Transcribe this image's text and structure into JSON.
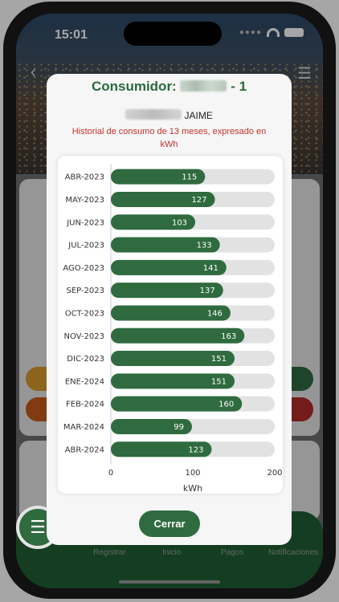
{
  "status_bar": {
    "time": "15:01"
  },
  "modal": {
    "title_prefix": "Consumidor:",
    "title_suffix": "- 1",
    "name_suffix": "JAIME",
    "note": "Historial de consumo de 13 meses, expresado en kWh",
    "close_label": "Cerrar"
  },
  "bottom_nav": {
    "items": [
      "Registrar",
      "Inicio",
      "Pagos",
      "Notificaciones"
    ]
  },
  "colors": {
    "bar": "#2f6b3f",
    "track": "#e2e2e2",
    "note": "#c4322b",
    "title": "#2a6a3c"
  },
  "chart_data": {
    "type": "bar",
    "orientation": "horizontal",
    "categories": [
      "ABR-2023",
      "MAY-2023",
      "JUN-2023",
      "JUL-2023",
      "AGO-2023",
      "SEP-2023",
      "OCT-2023",
      "NOV-2023",
      "DIC-2023",
      "ENE-2024",
      "FEB-2024",
      "MAR-2024",
      "ABR-2024"
    ],
    "values": [
      115,
      127,
      103,
      133,
      141,
      137,
      146,
      163,
      151,
      151,
      160,
      99,
      123
    ],
    "xlabel": "kWh",
    "xlim": [
      0,
      200
    ],
    "xticks": [
      0,
      100,
      200
    ],
    "data_labels": true,
    "grid": false
  }
}
